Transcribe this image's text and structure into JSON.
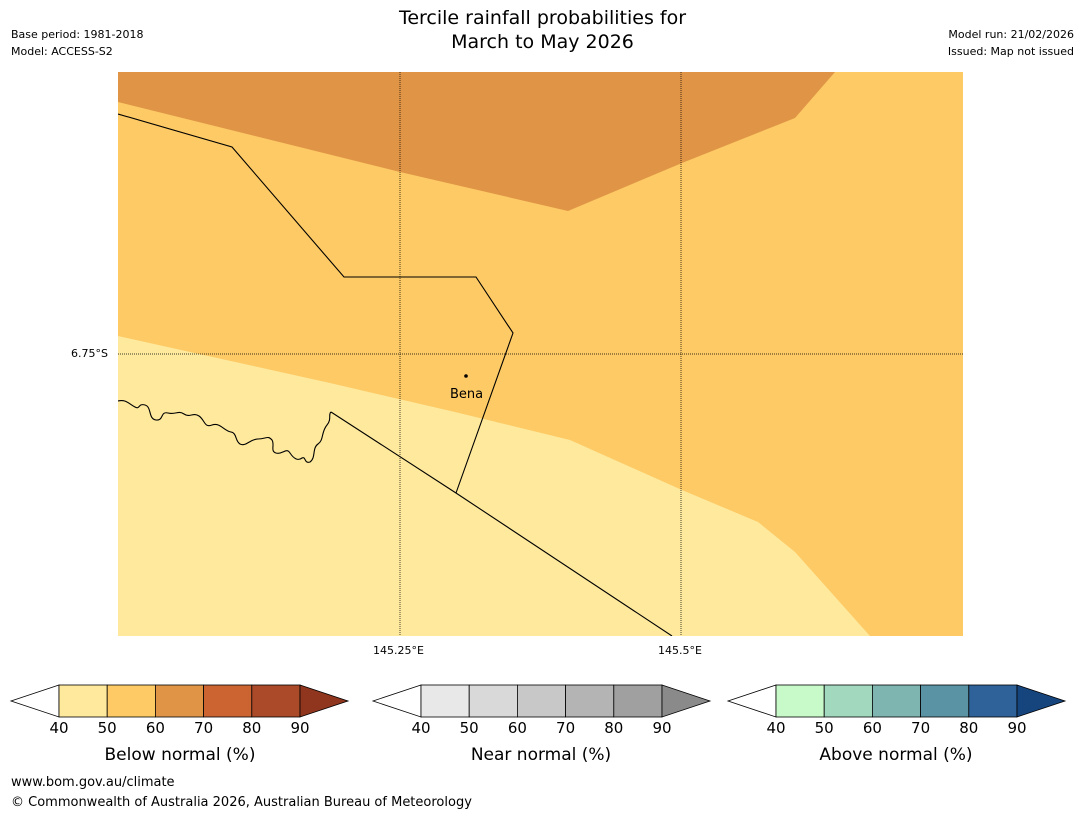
{
  "title": {
    "line1": "Tercile rainfall probabilities for",
    "line2": "March to May 2026"
  },
  "meta_left": {
    "base_period": "Base period: 1981-2018",
    "model": "Model: ACCESS-S2"
  },
  "meta_right": {
    "model_run": "Model run: 21/02/2026",
    "issued": "Issued: Map not issued"
  },
  "map": {
    "lat_label": "6.75°S",
    "lon_labels": [
      "145.25°E",
      "145.5°E"
    ],
    "place": "Bena",
    "region_colors": {
      "below_40_50": "#fee99d",
      "below_50_60": "#fdca65",
      "below_60_70": "#e09546"
    }
  },
  "colorbars": [
    {
      "name": "below",
      "title": "Below normal (%)",
      "ticks": [
        "40",
        "50",
        "60",
        "70",
        "80",
        "90"
      ],
      "under_color": "#ffffff",
      "colors": [
        "#fee99d",
        "#fdca65",
        "#e09546",
        "#cc6432",
        "#ab4a28"
      ],
      "over_color": "#90361f"
    },
    {
      "name": "near",
      "title": "Near normal (%)",
      "ticks": [
        "40",
        "50",
        "60",
        "70",
        "80",
        "90"
      ],
      "under_color": "#ffffff",
      "colors": [
        "#e8e8e8",
        "#d9d9d9",
        "#c8c8c8",
        "#b4b4b4",
        "#a0a0a0"
      ],
      "over_color": "#8a8a8a"
    },
    {
      "name": "above",
      "title": "Above normal (%)",
      "ticks": [
        "40",
        "50",
        "60",
        "70",
        "80",
        "90"
      ],
      "under_color": "#ffffff",
      "colors": [
        "#c8fac9",
        "#a2d9be",
        "#7fb5b0",
        "#5a93a3",
        "#2e6298"
      ],
      "over_color": "#16457d"
    }
  ],
  "footer": {
    "url": "www.bom.gov.au/climate",
    "copyright": "© Commonwealth of Australia 2026, Australian Bureau of Meteorology"
  }
}
